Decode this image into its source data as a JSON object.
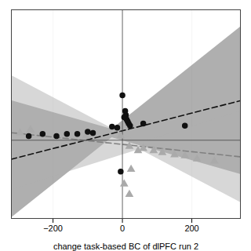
{
  "chart_data": {
    "type": "scatter",
    "xlabel": "change task-based BC of dlPFC run 2",
    "xlim": [
      -320,
      340
    ],
    "ylim": [
      -0.75,
      1.25
    ],
    "xticks": [
      -200,
      0,
      200
    ],
    "yticks": [],
    "tick_labels": "x",
    "grid": true,
    "reference_lines": {
      "x": [
        0
      ],
      "y": [
        0
      ]
    },
    "series": [
      {
        "type": "area",
        "color": "#606060",
        "x": [
          -320,
          -30,
          340
        ],
        "lower": [
          -0.744,
          0.0245,
          -0.327
        ],
        "upper": [
          0.38,
          0.1045,
          1.085
        ]
      },
      {
        "type": "area",
        "color": "#b0b0b0",
        "x": [
          -320,
          50,
          340
        ],
        "lower": [
          -0.476,
          -0.0875,
          -0.595
        ],
        "upper": [
          0.62,
          -0.0275,
          0.277
        ]
      },
      {
        "type": "line",
        "color": "#111111",
        "line_style": "dashed",
        "x": [
          -320,
          340
        ],
        "values": [
          -0.182,
          0.379
        ]
      },
      {
        "type": "line",
        "color": "#808080",
        "line_style": "dashed",
        "x": [
          -320,
          340
        ],
        "values": [
          0.072,
          -0.159
        ]
      },
      {
        "type": "scatter",
        "color": "#aaaaaa",
        "marker": "triangle",
        "x": [
          -295,
          -265,
          -105,
          -5,
          20,
          45,
          60,
          90,
          115,
          150,
          180,
          215,
          265,
          25,
          5,
          20
        ],
        "values": [
          0.07,
          0.1,
          0.04,
          0.04,
          -0.06,
          -0.1,
          -0.08,
          -0.1,
          -0.12,
          -0.14,
          -0.15,
          -0.18,
          -0.2,
          -0.28,
          -0.42,
          -0.52
        ]
      },
      {
        "type": "scatter",
        "color": "#111111",
        "marker": "circle",
        "x": [
          -270,
          -230,
          -190,
          -160,
          -130,
          -100,
          -85,
          -30,
          -15,
          0,
          5,
          8,
          10,
          12,
          15,
          18,
          22,
          60,
          180,
          -5
        ],
        "values": [
          0.04,
          0.06,
          0.04,
          0.06,
          0.06,
          0.08,
          0.07,
          0.13,
          0.12,
          0.43,
          0.22,
          0.28,
          0.24,
          0.2,
          0.18,
          0.16,
          0.14,
          0.16,
          0.14,
          -0.3
        ]
      }
    ]
  }
}
